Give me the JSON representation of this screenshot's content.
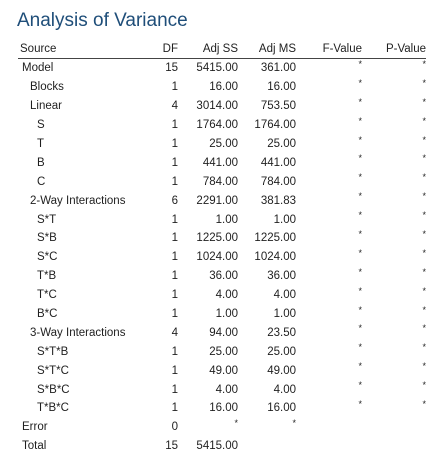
{
  "title": "Analysis of Variance",
  "columns": {
    "source": "Source",
    "df": "DF",
    "adj_ss": "Adj SS",
    "adj_ms": "Adj MS",
    "f_value": "F-Value",
    "p_value": "P-Value"
  },
  "rows": [
    {
      "source": "Model",
      "level": 0,
      "df": "15",
      "adj_ss": "5415.00",
      "adj_ms": "361.00",
      "f_value": "*",
      "p_value": "*"
    },
    {
      "source": "Blocks",
      "level": 1,
      "df": "1",
      "adj_ss": "16.00",
      "adj_ms": "16.00",
      "f_value": "*",
      "p_value": "*"
    },
    {
      "source": "Linear",
      "level": 1,
      "df": "4",
      "adj_ss": "3014.00",
      "adj_ms": "753.50",
      "f_value": "*",
      "p_value": "*"
    },
    {
      "source": "S",
      "level": 2,
      "df": "1",
      "adj_ss": "1764.00",
      "adj_ms": "1764.00",
      "f_value": "*",
      "p_value": "*"
    },
    {
      "source": "T",
      "level": 2,
      "df": "1",
      "adj_ss": "25.00",
      "adj_ms": "25.00",
      "f_value": "*",
      "p_value": "*"
    },
    {
      "source": "B",
      "level": 2,
      "df": "1",
      "adj_ss": "441.00",
      "adj_ms": "441.00",
      "f_value": "*",
      "p_value": "*"
    },
    {
      "source": "C",
      "level": 2,
      "df": "1",
      "adj_ss": "784.00",
      "adj_ms": "784.00",
      "f_value": "*",
      "p_value": "*"
    },
    {
      "source": "2-Way Interactions",
      "level": 1,
      "df": "6",
      "adj_ss": "2291.00",
      "adj_ms": "381.83",
      "f_value": "*",
      "p_value": "*"
    },
    {
      "source": "S*T",
      "level": 2,
      "df": "1",
      "adj_ss": "1.00",
      "adj_ms": "1.00",
      "f_value": "*",
      "p_value": "*"
    },
    {
      "source": "S*B",
      "level": 2,
      "df": "1",
      "adj_ss": "1225.00",
      "adj_ms": "1225.00",
      "f_value": "*",
      "p_value": "*"
    },
    {
      "source": "S*C",
      "level": 2,
      "df": "1",
      "adj_ss": "1024.00",
      "adj_ms": "1024.00",
      "f_value": "*",
      "p_value": "*"
    },
    {
      "source": "T*B",
      "level": 2,
      "df": "1",
      "adj_ss": "36.00",
      "adj_ms": "36.00",
      "f_value": "*",
      "p_value": "*"
    },
    {
      "source": "T*C",
      "level": 2,
      "df": "1",
      "adj_ss": "4.00",
      "adj_ms": "4.00",
      "f_value": "*",
      "p_value": "*"
    },
    {
      "source": "B*C",
      "level": 2,
      "df": "1",
      "adj_ss": "1.00",
      "adj_ms": "1.00",
      "f_value": "*",
      "p_value": "*"
    },
    {
      "source": "3-Way Interactions",
      "level": 1,
      "df": "4",
      "adj_ss": "94.00",
      "adj_ms": "23.50",
      "f_value": "*",
      "p_value": "*"
    },
    {
      "source": "S*T*B",
      "level": 2,
      "df": "1",
      "adj_ss": "25.00",
      "adj_ms": "25.00",
      "f_value": "*",
      "p_value": "*"
    },
    {
      "source": "S*T*C",
      "level": 2,
      "df": "1",
      "adj_ss": "49.00",
      "adj_ms": "49.00",
      "f_value": "*",
      "p_value": "*"
    },
    {
      "source": "S*B*C",
      "level": 2,
      "df": "1",
      "adj_ss": "4.00",
      "adj_ms": "4.00",
      "f_value": "*",
      "p_value": "*"
    },
    {
      "source": "T*B*C",
      "level": 2,
      "df": "1",
      "adj_ss": "16.00",
      "adj_ms": "16.00",
      "f_value": "*",
      "p_value": "*"
    },
    {
      "source": "Error",
      "level": 0,
      "df": "0",
      "adj_ss": "*",
      "adj_ms": "*",
      "f_value": "",
      "p_value": ""
    },
    {
      "source": "Total",
      "level": 0,
      "df": "15",
      "adj_ss": "5415.00",
      "adj_ms": "",
      "f_value": "",
      "p_value": ""
    }
  ]
}
